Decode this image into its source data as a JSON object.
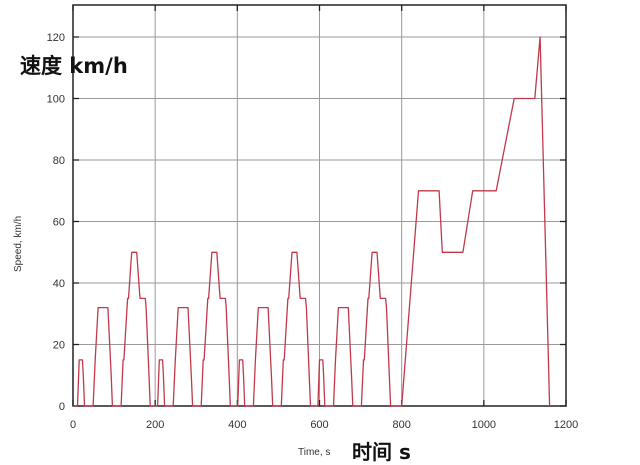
{
  "chart_data": {
    "type": "line",
    "title": "",
    "xlabel": "Time, s",
    "ylabel": "Speed, km/h",
    "overlay_ylabel_cn": "速度 km/h",
    "overlay_xlabel_cn": "时间 s",
    "xlim": [
      0,
      1200
    ],
    "ylim": [
      0,
      120
    ],
    "xticks": [
      0,
      200,
      400,
      600,
      800,
      1000,
      1200
    ],
    "yticks": [
      0,
      20,
      40,
      60,
      80,
      100,
      120
    ],
    "grid": true,
    "legend": null,
    "line_color": "#c0394b",
    "series": [
      {
        "name": "Speed",
        "x": [
          0,
          11,
          15,
          23,
          25,
          28,
          44,
          49,
          54,
          61,
          85,
          93,
          96,
          117,
          122,
          124,
          133,
          135,
          143,
          155,
          163,
          176,
          178,
          185,
          188,
          195,
          206,
          210,
          218,
          220,
          223,
          239,
          244,
          249,
          256,
          280,
          288,
          291,
          312,
          317,
          319,
          328,
          330,
          338,
          350,
          358,
          371,
          373,
          380,
          383,
          390,
          401,
          405,
          413,
          415,
          418,
          434,
          439,
          444,
          451,
          475,
          483,
          486,
          507,
          512,
          514,
          523,
          525,
          533,
          545,
          553,
          566,
          568,
          575,
          578,
          585,
          596,
          600,
          608,
          610,
          613,
          629,
          634,
          639,
          646,
          670,
          678,
          681,
          702,
          707,
          709,
          718,
          720,
          728,
          740,
          748,
          761,
          763,
          770,
          773,
          780,
          800,
          841,
          891,
          899,
          949,
          973,
          1030,
          1074,
          1124,
          1137,
          1160
        ],
        "y": [
          0,
          0,
          15,
          15,
          10,
          0,
          0,
          0,
          15,
          32,
          32,
          10,
          0,
          0,
          15,
          15,
          35,
          35,
          50,
          50,
          35,
          35,
          32,
          10,
          0,
          0,
          0,
          15,
          15,
          10,
          0,
          0,
          0,
          15,
          32,
          32,
          10,
          0,
          0,
          15,
          15,
          35,
          35,
          50,
          50,
          35,
          35,
          32,
          10,
          0,
          0,
          0,
          15,
          15,
          10,
          0,
          0,
          0,
          15,
          32,
          32,
          10,
          0,
          0,
          15,
          15,
          35,
          35,
          50,
          50,
          35,
          35,
          32,
          10,
          0,
          0,
          0,
          15,
          15,
          10,
          0,
          0,
          0,
          15,
          32,
          32,
          10,
          0,
          0,
          15,
          15,
          35,
          35,
          50,
          50,
          35,
          35,
          32,
          10,
          0,
          0,
          0,
          70,
          70,
          50,
          50,
          70,
          70,
          100,
          100,
          120,
          0
        ]
      }
    ]
  }
}
